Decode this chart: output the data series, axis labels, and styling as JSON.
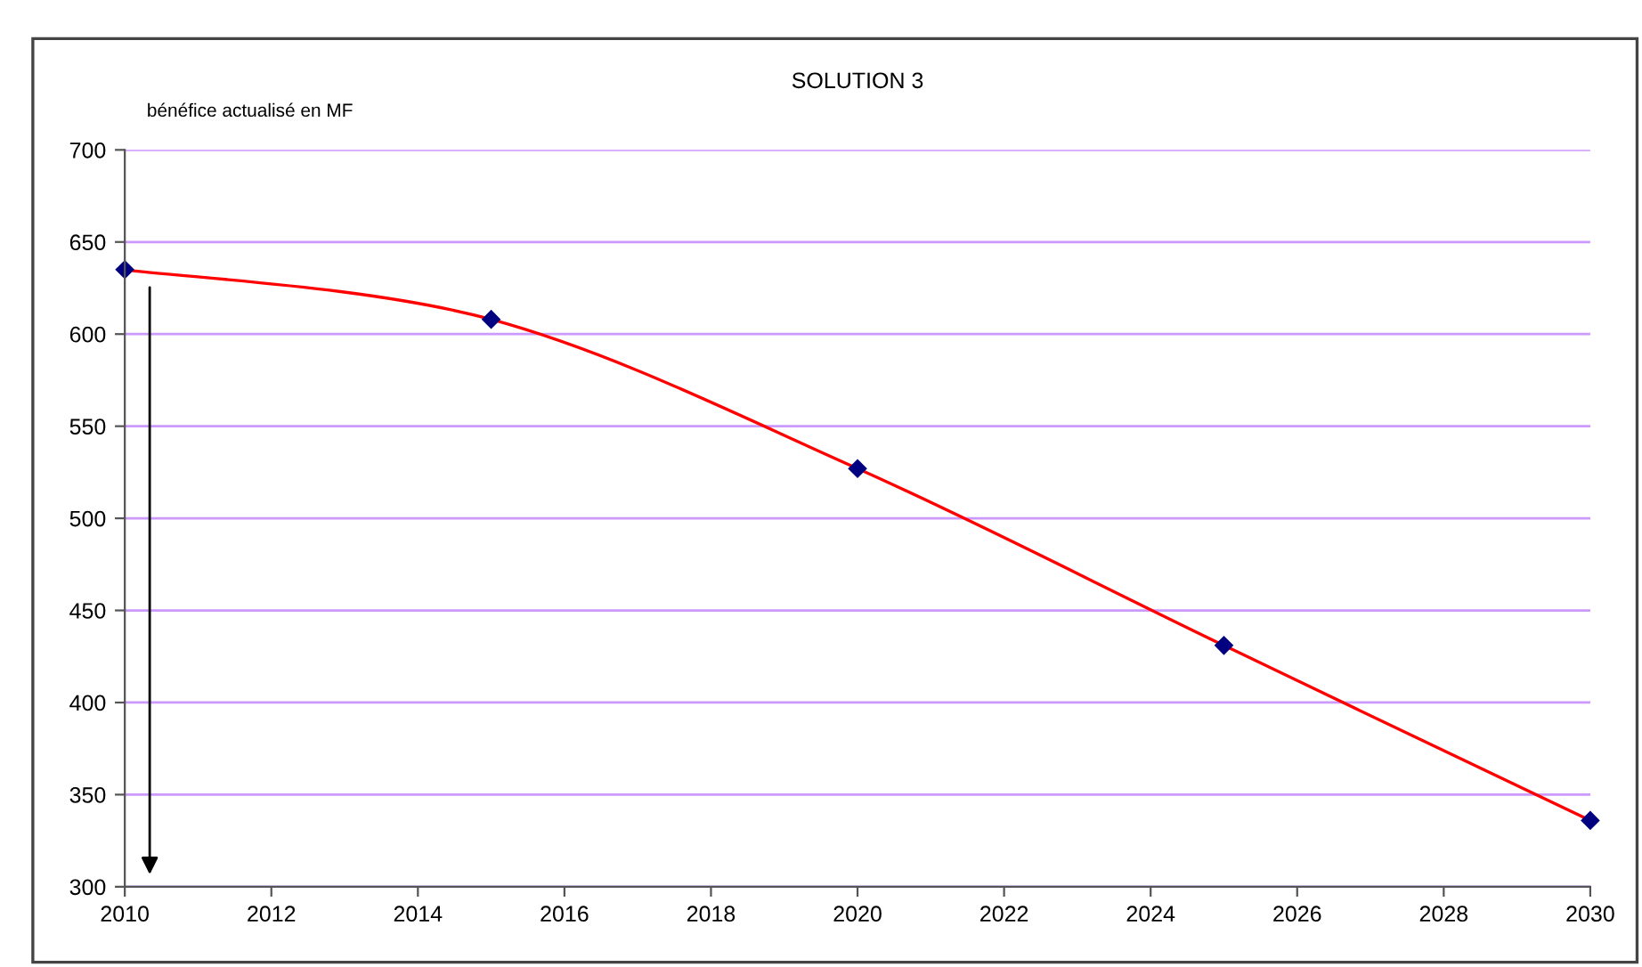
{
  "chart_data": {
    "type": "line",
    "title": "SOLUTION 3",
    "ylabel": "bénéfice actualisé en MF",
    "x": [
      2010,
      2015,
      2020,
      2025,
      2030
    ],
    "series": [
      {
        "color": "#ff0000",
        "values": [
          635,
          608,
          527,
          431,
          336
        ]
      }
    ],
    "marker": "diamond",
    "line_style": "solid",
    "grid": "y",
    "legend": false,
    "xlim": [
      2010,
      2030
    ],
    "xticks": [
      2010,
      2012,
      2014,
      2016,
      2018,
      2020,
      2022,
      2024,
      2026,
      2028,
      2030
    ],
    "ylim": [
      300,
      700
    ],
    "yticks": [
      300,
      350,
      400,
      450,
      500,
      550,
      600,
      650,
      700
    ]
  }
}
